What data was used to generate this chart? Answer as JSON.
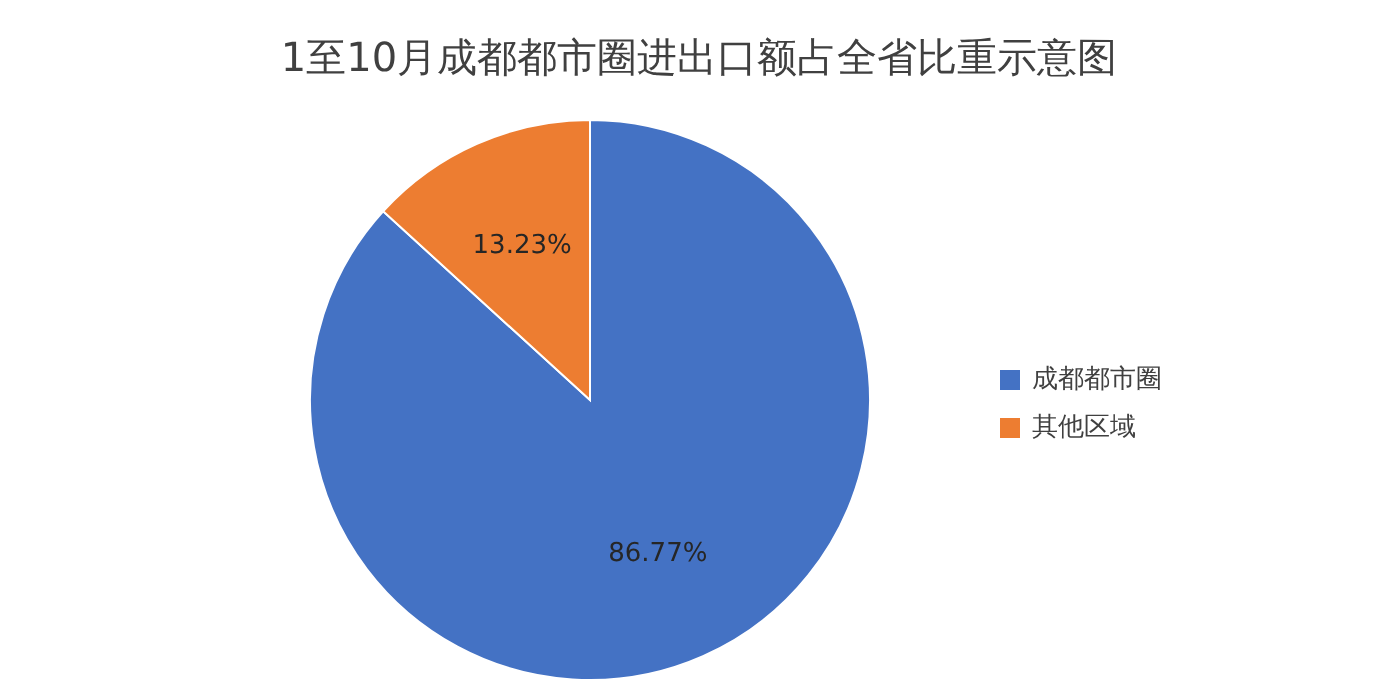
{
  "chart_data": {
    "type": "pie",
    "title": "1至10月成都都市圈进出口额占全省比重示意图",
    "categories": [
      "成都都市圈",
      "其他区域"
    ],
    "values": [
      86.77,
      13.23
    ],
    "colors": [
      "#4472c4",
      "#ed7d31"
    ],
    "value_labels": [
      "86.77%",
      "13.23%"
    ],
    "legend": "right"
  }
}
